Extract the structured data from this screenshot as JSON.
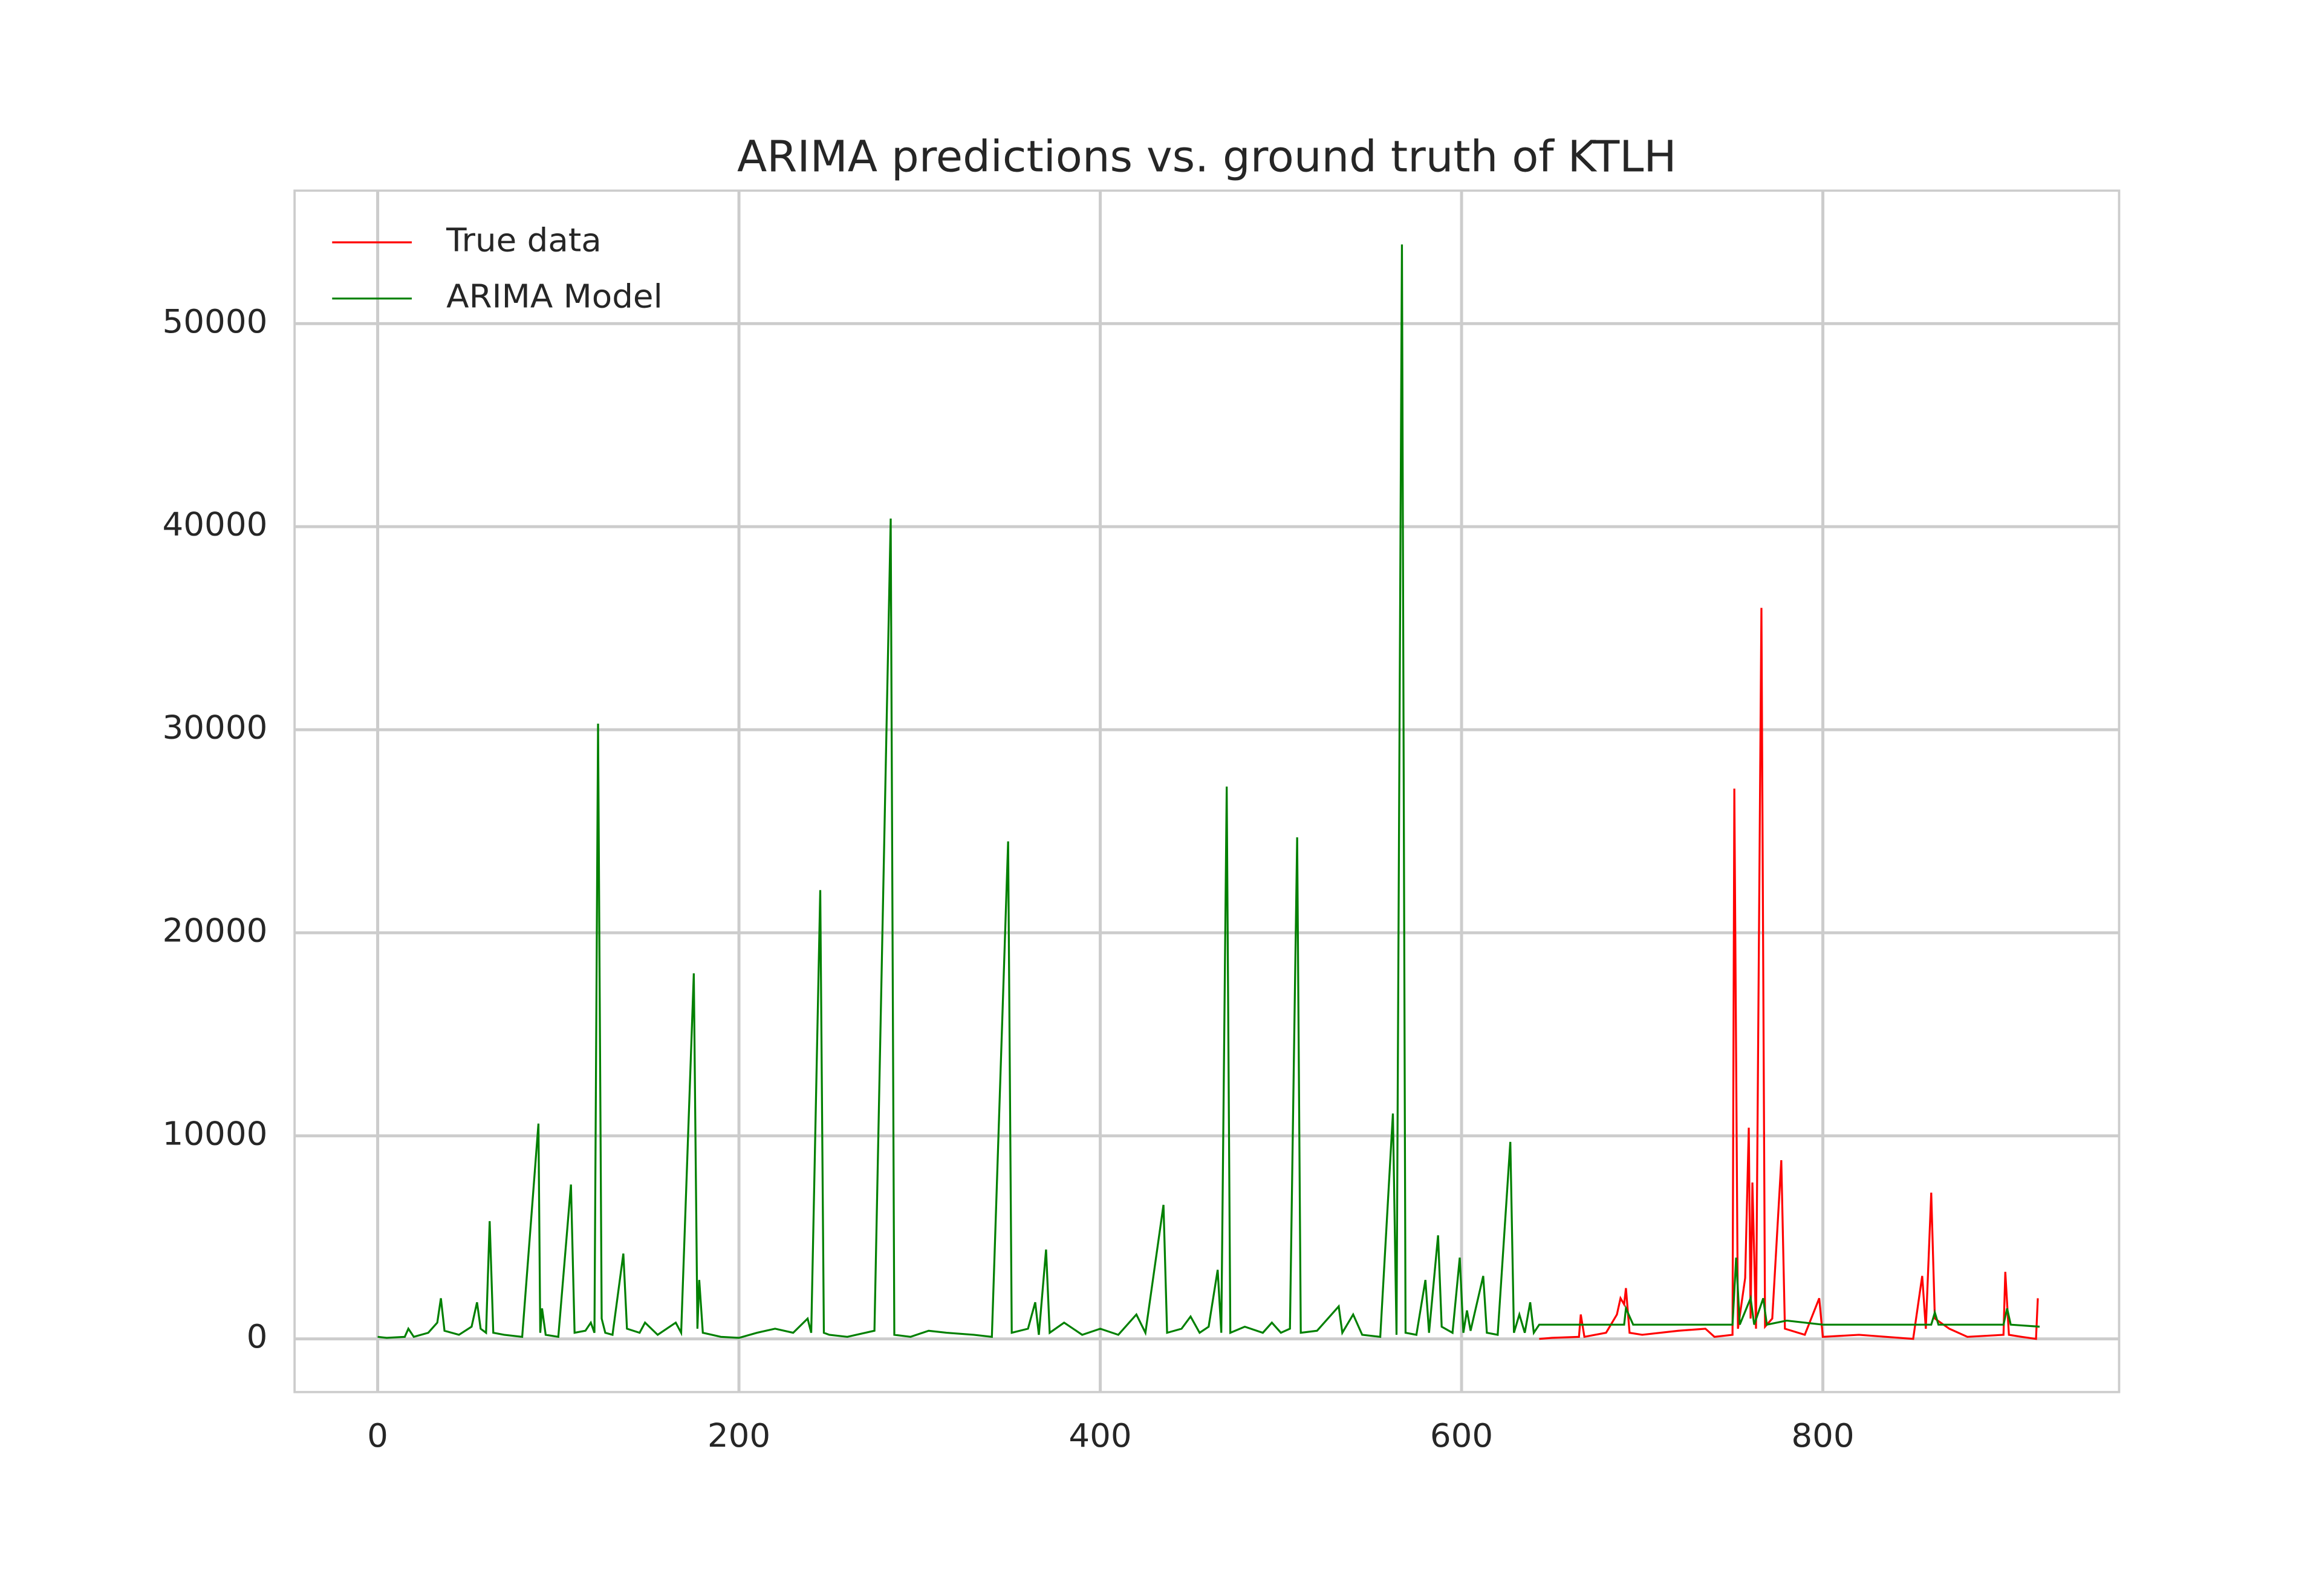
{
  "chart_data": {
    "type": "line",
    "title": "ARIMA predictions vs. ground truth of KTLH",
    "xlim": [
      -46,
      964
    ],
    "ylim": [
      -2620,
      56550
    ],
    "xticks": [
      0,
      200,
      400,
      600,
      800
    ],
    "yticks": [
      0,
      10000,
      20000,
      30000,
      40000,
      50000
    ],
    "grid": true,
    "legend": "upper left",
    "series": [
      {
        "name": "True data",
        "color": "#ff0000",
        "x": [
          643,
          650,
          665,
          666,
          668,
          680,
          686,
          688,
          690,
          691,
          693,
          700,
          720,
          735,
          740,
          750,
          751,
          753,
          757,
          759,
          760,
          761,
          763,
          766,
          768,
          772,
          777,
          779,
          790,
          798,
          800,
          820,
          850,
          855,
          857,
          860,
          862,
          870,
          880,
          900,
          901,
          903,
          910,
          918,
          919
        ],
        "values": [
          0,
          50,
          100,
          1200,
          100,
          300,
          1200,
          2000,
          1700,
          2500,
          300,
          200,
          400,
          500,
          100,
          200,
          27100,
          500,
          3000,
          10400,
          1000,
          7700,
          500,
          36000,
          600,
          1000,
          8800,
          500,
          200,
          2000,
          100,
          200,
          0,
          3100,
          500,
          7200,
          1000,
          500,
          100,
          200,
          3300,
          200,
          100,
          0,
          2000
        ]
      },
      {
        "name": "ARIMA Model",
        "color": "#008000",
        "x": [
          0,
          5,
          15,
          17,
          20,
          28,
          33,
          35,
          37,
          45,
          52,
          55,
          57,
          60,
          62,
          64,
          70,
          80,
          89,
          90,
          91,
          93,
          100,
          107,
          109,
          115,
          118,
          120,
          122,
          124,
          126,
          130,
          136,
          138,
          145,
          148,
          155,
          165,
          168,
          175,
          177,
          178,
          180,
          190,
          200,
          210,
          220,
          230,
          238,
          240,
          245,
          247,
          250,
          260,
          275,
          284,
          286,
          295,
          305,
          315,
          330,
          340,
          349,
          351,
          360,
          364,
          366,
          370,
          372,
          380,
          390,
          400,
          410,
          420,
          425,
          435,
          437,
          445,
          450,
          455,
          460,
          465,
          467,
          470,
          472,
          480,
          490,
          495,
          500,
          505,
          509,
          511,
          520,
          532,
          534,
          540,
          545,
          555,
          562,
          564,
          567,
          569,
          575,
          580,
          582,
          587,
          589,
          595,
          599,
          601,
          603,
          605,
          612,
          614,
          620,
          627,
          629,
          632,
          635,
          638,
          640,
          643,
          690,
          691,
          695,
          750,
          752,
          754,
          760,
          762,
          767,
          769,
          780,
          800,
          860,
          862,
          864,
          900,
          902,
          904,
          920
        ],
        "values": [
          100,
          50,
          100,
          500,
          100,
          300,
          800,
          2000,
          400,
          200,
          600,
          1800,
          500,
          300,
          5800,
          300,
          200,
          100,
          10600,
          300,
          1500,
          200,
          100,
          7600,
          300,
          400,
          800,
          300,
          30300,
          1000,
          300,
          200,
          4200,
          500,
          300,
          800,
          200,
          800,
          300,
          18000,
          500,
          2900,
          300,
          100,
          50,
          300,
          500,
          300,
          1000,
          300,
          22100,
          300,
          200,
          100,
          400,
          40400,
          200,
          100,
          400,
          300,
          200,
          100,
          24500,
          300,
          500,
          1800,
          200,
          4400,
          300,
          800,
          200,
          500,
          200,
          1200,
          300,
          6600,
          300,
          500,
          1100,
          300,
          600,
          3400,
          300,
          27200,
          300,
          600,
          300,
          800,
          300,
          500,
          24700,
          300,
          400,
          1600,
          300,
          1200,
          200,
          100,
          11100,
          200,
          53900,
          300,
          200,
          2900,
          300,
          5100,
          600,
          300,
          4000,
          300,
          1400,
          400,
          3100,
          300,
          200,
          9700,
          300,
          1200,
          300,
          1800,
          300,
          700,
          700,
          1500,
          700,
          700,
          4000,
          700,
          2000,
          700,
          2000,
          700,
          900,
          700,
          700,
          1300,
          700,
          700,
          1500,
          700,
          600
        ]
      }
    ]
  }
}
